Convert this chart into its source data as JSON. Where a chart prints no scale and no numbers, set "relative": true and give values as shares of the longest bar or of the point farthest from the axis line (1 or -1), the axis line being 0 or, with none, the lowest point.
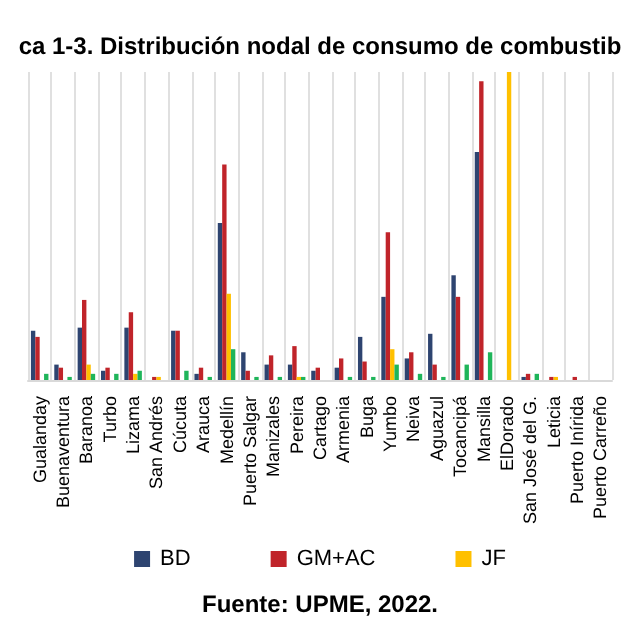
{
  "chart_data": {
    "type": "bar",
    "relative": true,
    "title": "ca 1-3. Distribución nodal de consumo de combustib",
    "categories": [
      "Gualanday",
      "Buenaventura",
      "Baranoa",
      "Turbo",
      "Lizama",
      "San Andrés",
      "Cúcuta",
      "Arauca",
      "Medellín",
      "Puerto Salgar",
      "Manizales",
      "Pereira",
      "Cartago",
      "Armenia",
      "Buga",
      "Yumbo",
      "Neiva",
      "Aguazul",
      "Tocancipá",
      "Mansilla",
      "ElDorado",
      "San José del G.",
      "Leticia",
      "Puerto Inírida",
      "Puerto Carreño"
    ],
    "series": [
      {
        "name": "BD",
        "color": "#2e4470",
        "values": [
          0.16,
          0.05,
          0.17,
          0.03,
          0.17,
          0,
          0.16,
          0.02,
          0.51,
          0.09,
          0.05,
          0.05,
          0.03,
          0.04,
          0.14,
          0.27,
          0.07,
          0.15,
          0.34,
          0.74,
          0,
          0.01,
          0,
          0,
          0
        ]
      },
      {
        "name": "GM+AC",
        "color": "#c0242a",
        "values": [
          0.14,
          0.04,
          0.26,
          0.04,
          0.22,
          0.01,
          0.16,
          0.04,
          0.7,
          0.03,
          0.08,
          0.11,
          0.04,
          0.07,
          0.06,
          0.48,
          0.09,
          0.05,
          0.27,
          0.97,
          0,
          0.02,
          0.01,
          0.01,
          0
        ]
      },
      {
        "name": "JF",
        "color": "#ffc000",
        "values": [
          0,
          0,
          0.05,
          0,
          0.02,
          0.01,
          0,
          0,
          0.28,
          0,
          0,
          0.01,
          0,
          0,
          0,
          0.1,
          0,
          0,
          0,
          0,
          1,
          0,
          0.01,
          0,
          0
        ]
      },
      {
        "color": "#1fb55a",
        "values": [
          0.02,
          0.01,
          0.02,
          0.02,
          0.03,
          0,
          0.03,
          0.01,
          0.1,
          0.01,
          0.01,
          0.01,
          0,
          0.01,
          0.01,
          0.05,
          0.02,
          0.01,
          0.05,
          0.09,
          0,
          0.02,
          0,
          0,
          0
        ]
      }
    ],
    "grid": "x",
    "legend": "bottom",
    "annotations": [
      "Fuente: UPME, 2022."
    ]
  }
}
